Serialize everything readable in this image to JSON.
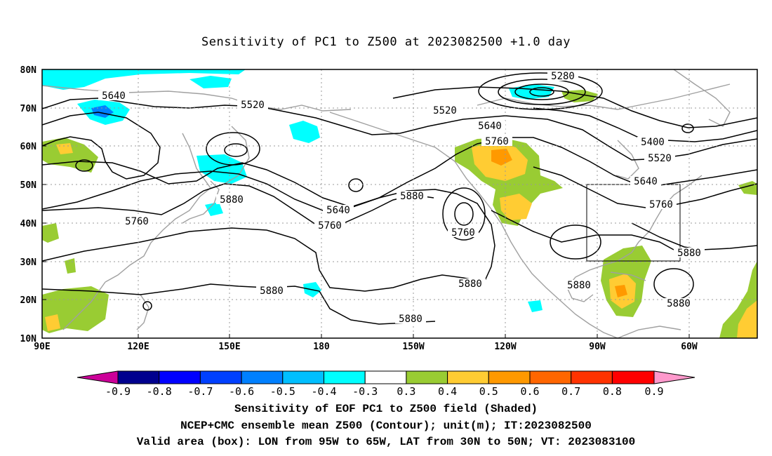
{
  "title": "Sensitivity of PC1 to Z500 at 2023082500 +1.0 day",
  "axes": {
    "lat_labels": [
      "80N",
      "70N",
      "60N",
      "50N",
      "40N",
      "30N",
      "20N",
      "10N"
    ],
    "lon_labels": [
      "90E",
      "120E",
      "150E",
      "180",
      "150W",
      "120W",
      "90W",
      "60W"
    ],
    "lon_range": [
      "90E",
      "30W"
    ],
    "lat_range": [
      "10N",
      "80N"
    ]
  },
  "contours": {
    "unit": "m",
    "labels": [
      "5280",
      "5520",
      "5520",
      "5520",
      "5400",
      "5640",
      "5640",
      "5640",
      "5640",
      "5760",
      "5760",
      "5760",
      "5760",
      "5760",
      "5880",
      "5880",
      "5880",
      "5880",
      "5880",
      "5880",
      "5880"
    ]
  },
  "valid_box": {
    "lon": [
      "95W",
      "65W"
    ],
    "lat": [
      "30N",
      "50N"
    ]
  },
  "colorbar": {
    "labels": [
      "-0.9",
      "-0.8",
      "-0.7",
      "-0.6",
      "-0.5",
      "-0.4",
      "-0.3",
      "0.3",
      "0.4",
      "0.5",
      "0.6",
      "0.7",
      "0.8",
      "0.9"
    ],
    "colors": [
      "#00008e",
      "#0000ff",
      "#0040ff",
      "#0080ff",
      "#00bfff",
      "#00ffff",
      "#ffffff",
      "#99cc33",
      "#ffcc33",
      "#ff9900",
      "#ff6600",
      "#ff3300",
      "#ff0000"
    ],
    "low_arrow_color": "#cc0099",
    "high_arrow_color": "#ff99cc"
  },
  "captions": [
    "Sensitivity of EOF PC1 to Z500 field (Shaded)",
    "NCEP+CMC ensemble mean Z500 (Contour); unit(m); IT:2023082500",
    "Valid area (box): LON from 95W to 65W, LAT from 30N to 50N; VT: 2023083100"
  ]
}
